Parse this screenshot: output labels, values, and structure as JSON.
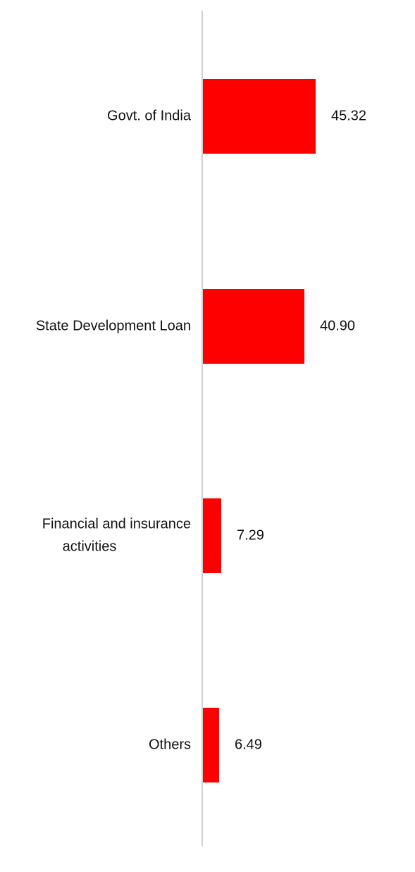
{
  "chart_data": {
    "type": "bar",
    "orientation": "horizontal",
    "categories": [
      "Govt. of India",
      "State Development Loan",
      "Financial and insurance activities",
      "Others"
    ],
    "category_lines": [
      [
        "Govt. of India"
      ],
      [
        "State Development Loan"
      ],
      [
        "Financial and insurance",
        "activities"
      ],
      [
        "Others"
      ]
    ],
    "values": [
      45.32,
      40.9,
      7.29,
      6.49
    ],
    "value_labels": [
      "45.32",
      "40.90",
      "7.29",
      "6.49"
    ],
    "title": "",
    "xlabel": "",
    "ylabel": "",
    "xlim": [
      0,
      45.32
    ],
    "grid": false,
    "legend": "none",
    "bar_color": "#ff0000",
    "axis_color": "#d0d0d0"
  }
}
